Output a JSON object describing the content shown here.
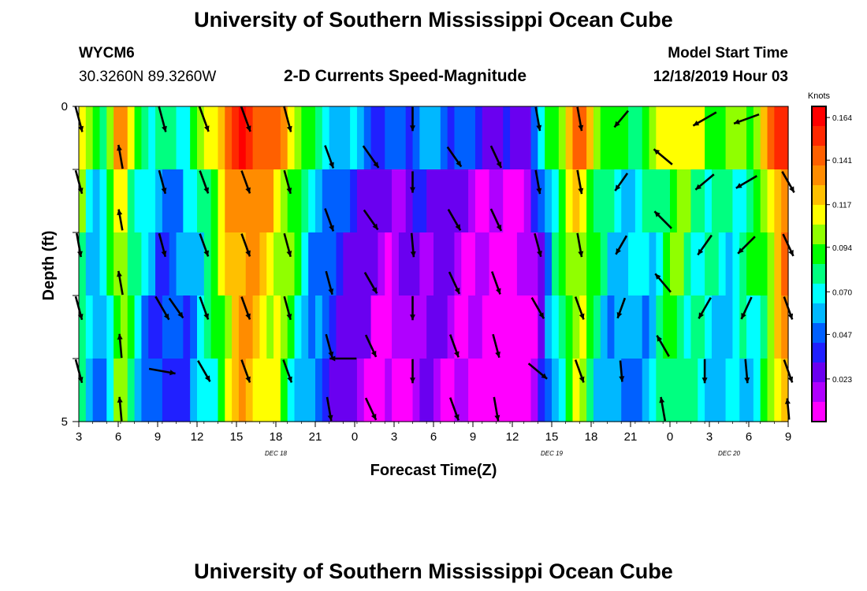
{
  "header": {
    "title": "University of Southern Mississippi Ocean Cube",
    "station_id": "WYCM6",
    "coordinates": "30.3260N 89.3260W",
    "subtitle": "2-D Currents Speed-Magnitude",
    "model_label": "Model Start Time",
    "model_time": "12/18/2019 Hour 03"
  },
  "footer": {
    "title": "University of Southern Mississippi Ocean Cube"
  },
  "chart_data": {
    "type": "heatmap",
    "title": "2-D Currents Speed-Magnitude",
    "xlabel": "Forecast Time(Z)",
    "ylabel": "Depth (ft)",
    "x_tick_labels": [
      "3",
      "6",
      "9",
      "12",
      "15",
      "18",
      "21",
      "0",
      "3",
      "6",
      "9",
      "12",
      "15",
      "18",
      "21",
      "0",
      "3",
      "6",
      "9"
    ],
    "x_day_labels": [
      {
        "label": "DEC 18",
        "tick_index": 5
      },
      {
        "label": "DEC 19",
        "tick_index": 12
      },
      {
        "label": "DEC 20",
        "tick_index": 16.5
      }
    ],
    "y_tick_labels": [
      "0",
      "5"
    ],
    "ylim": [
      0,
      5
    ],
    "y_reversed": true,
    "hours": [
      3,
      54
    ],
    "colorbar": {
      "label": "Knots",
      "tick_labels": [
        "0.164",
        "0.141",
        "0.117",
        "0.094",
        "0.070",
        "0.047",
        "0.023"
      ],
      "range": [
        0.0,
        0.17
      ]
    },
    "palette": [
      "#ff00ff",
      "#b000ff",
      "#6a00f0",
      "#2020ff",
      "#0060ff",
      "#00b8ff",
      "#00ffff",
      "#00ff80",
      "#00ff00",
      "#90ff00",
      "#ffff00",
      "#ffc000",
      "#ff8c00",
      "#ff6000",
      "#ff2800",
      "#ff0000"
    ],
    "depth_layers": 5,
    "speed_profile": [
      [
        3,
        0.1
      ],
      [
        4,
        0.06
      ],
      [
        5,
        0.075
      ],
      [
        6,
        0.12
      ],
      [
        7,
        0.08
      ],
      [
        8,
        0.06
      ],
      [
        9,
        0.05
      ],
      [
        10,
        0.055
      ],
      [
        11,
        0.06
      ],
      [
        12,
        0.08
      ],
      [
        13,
        0.1
      ],
      [
        14,
        0.13
      ],
      [
        15,
        0.14
      ],
      [
        16,
        0.13
      ],
      [
        17,
        0.12
      ],
      [
        18,
        0.1
      ],
      [
        19,
        0.08
      ],
      [
        20,
        0.06
      ],
      [
        21,
        0.05
      ],
      [
        22,
        0.04
      ],
      [
        23,
        0.035
      ],
      [
        24,
        0.025
      ],
      [
        25,
        0.02
      ],
      [
        26,
        0.022
      ],
      [
        27,
        0.03
      ],
      [
        28,
        0.03
      ],
      [
        29,
        0.03
      ],
      [
        30,
        0.025
      ],
      [
        31,
        0.02
      ],
      [
        32,
        0.012
      ],
      [
        33,
        0.008
      ],
      [
        34,
        0.008
      ],
      [
        35,
        0.012
      ],
      [
        36,
        0.03
      ],
      [
        37,
        0.07
      ],
      [
        38,
        0.1
      ],
      [
        39,
        0.12
      ],
      [
        40,
        0.09
      ],
      [
        41,
        0.07
      ],
      [
        42,
        0.065
      ],
      [
        43,
        0.065
      ],
      [
        44,
        0.07
      ],
      [
        45,
        0.09
      ],
      [
        46,
        0.1
      ],
      [
        47,
        0.085
      ],
      [
        48,
        0.08
      ],
      [
        49,
        0.075
      ],
      [
        50,
        0.075
      ],
      [
        51,
        0.08
      ],
      [
        52,
        0.09
      ],
      [
        53,
        0.12
      ],
      [
        54,
        0.15
      ]
    ],
    "depth_modifiers": [
      0.02,
      0.0,
      -0.005,
      -0.01,
      -0.015
    ],
    "vectors": [
      {
        "hour": 3,
        "depth": 0.2,
        "speed": 0.1,
        "dir": 165
      },
      {
        "hour": 6,
        "depth": 0.8,
        "speed": 0.09,
        "dir": 350
      },
      {
        "hour": 9,
        "depth": 0.2,
        "speed": 0.1,
        "dir": 165
      },
      {
        "hour": 12,
        "depth": 0.2,
        "speed": 0.1,
        "dir": 160
      },
      {
        "hour": 15,
        "depth": 0.2,
        "speed": 0.1,
        "dir": 160
      },
      {
        "hour": 18,
        "depth": 0.2,
        "speed": 0.1,
        "dir": 165
      },
      {
        "hour": 21,
        "depth": 0.8,
        "speed": 0.09,
        "dir": 160
      },
      {
        "hour": 24,
        "depth": 0.8,
        "speed": 0.1,
        "dir": 145
      },
      {
        "hour": 27,
        "depth": 0.2,
        "speed": 0.09,
        "dir": 180
      },
      {
        "hour": 30,
        "depth": 0.8,
        "speed": 0.09,
        "dir": 145
      },
      {
        "hour": 33,
        "depth": 0.8,
        "speed": 0.09,
        "dir": 155
      },
      {
        "hour": 36,
        "depth": 0.2,
        "speed": 0.09,
        "dir": 170
      },
      {
        "hour": 39,
        "depth": 0.2,
        "speed": 0.09,
        "dir": 170
      },
      {
        "hour": 42,
        "depth": 0.2,
        "speed": 0.08,
        "dir": 220
      },
      {
        "hour": 45,
        "depth": 0.8,
        "speed": 0.09,
        "dir": 310
      },
      {
        "hour": 48,
        "depth": 0.2,
        "speed": 0.1,
        "dir": 240
      },
      {
        "hour": 51,
        "depth": 0.2,
        "speed": 0.1,
        "dir": 250
      },
      {
        "hour": 3,
        "depth": 1.2,
        "speed": 0.09,
        "dir": 165
      },
      {
        "hour": 6,
        "depth": 1.8,
        "speed": 0.08,
        "dir": 350
      },
      {
        "hour": 9,
        "depth": 1.2,
        "speed": 0.09,
        "dir": 165
      },
      {
        "hour": 12,
        "depth": 1.2,
        "speed": 0.09,
        "dir": 160
      },
      {
        "hour": 15,
        "depth": 1.2,
        "speed": 0.09,
        "dir": 160
      },
      {
        "hour": 18,
        "depth": 1.2,
        "speed": 0.09,
        "dir": 165
      },
      {
        "hour": 21,
        "depth": 1.8,
        "speed": 0.09,
        "dir": 160
      },
      {
        "hour": 24,
        "depth": 1.8,
        "speed": 0.09,
        "dir": 145
      },
      {
        "hour": 27,
        "depth": 1.2,
        "speed": 0.08,
        "dir": 180
      },
      {
        "hour": 30,
        "depth": 1.8,
        "speed": 0.09,
        "dir": 150
      },
      {
        "hour": 33,
        "depth": 1.8,
        "speed": 0.09,
        "dir": 155
      },
      {
        "hour": 36,
        "depth": 1.2,
        "speed": 0.09,
        "dir": 170
      },
      {
        "hour": 39,
        "depth": 1.2,
        "speed": 0.09,
        "dir": 170
      },
      {
        "hour": 42,
        "depth": 1.2,
        "speed": 0.08,
        "dir": 215
      },
      {
        "hour": 45,
        "depth": 1.8,
        "speed": 0.09,
        "dir": 315
      },
      {
        "hour": 48,
        "depth": 1.2,
        "speed": 0.09,
        "dir": 230
      },
      {
        "hour": 51,
        "depth": 1.2,
        "speed": 0.09,
        "dir": 240
      },
      {
        "hour": 54,
        "depth": 1.2,
        "speed": 0.09,
        "dir": 150
      },
      {
        "hour": 3,
        "depth": 2.2,
        "speed": 0.09,
        "dir": 170
      },
      {
        "hour": 6,
        "depth": 2.8,
        "speed": 0.09,
        "dir": 350
      },
      {
        "hour": 9,
        "depth": 2.2,
        "speed": 0.09,
        "dir": 165
      },
      {
        "hour": 12,
        "depth": 2.2,
        "speed": 0.09,
        "dir": 160
      },
      {
        "hour": 15,
        "depth": 2.2,
        "speed": 0.09,
        "dir": 160
      },
      {
        "hour": 18,
        "depth": 2.2,
        "speed": 0.09,
        "dir": 165
      },
      {
        "hour": 21,
        "depth": 2.8,
        "speed": 0.09,
        "dir": 165
      },
      {
        "hour": 24,
        "depth": 2.8,
        "speed": 0.09,
        "dir": 150
      },
      {
        "hour": 27,
        "depth": 2.2,
        "speed": 0.09,
        "dir": 175
      },
      {
        "hour": 30,
        "depth": 2.8,
        "speed": 0.09,
        "dir": 155
      },
      {
        "hour": 33,
        "depth": 2.8,
        "speed": 0.09,
        "dir": 160
      },
      {
        "hour": 36,
        "depth": 2.2,
        "speed": 0.09,
        "dir": 165
      },
      {
        "hour": 39,
        "depth": 2.2,
        "speed": 0.09,
        "dir": 170
      },
      {
        "hour": 42,
        "depth": 2.2,
        "speed": 0.08,
        "dir": 210
      },
      {
        "hour": 45,
        "depth": 2.8,
        "speed": 0.09,
        "dir": 320
      },
      {
        "hour": 48,
        "depth": 2.2,
        "speed": 0.09,
        "dir": 215
      },
      {
        "hour": 51,
        "depth": 2.2,
        "speed": 0.09,
        "dir": 225
      },
      {
        "hour": 54,
        "depth": 2.2,
        "speed": 0.09,
        "dir": 155
      },
      {
        "hour": 3,
        "depth": 3.2,
        "speed": 0.09,
        "dir": 165
      },
      {
        "hour": 6,
        "depth": 3.8,
        "speed": 0.09,
        "dir": 355
      },
      {
        "hour": 9,
        "depth": 3.2,
        "speed": 0.1,
        "dir": 150
      },
      {
        "hour": 12,
        "depth": 3.2,
        "speed": 0.09,
        "dir": 160
      },
      {
        "hour": 15,
        "depth": 3.2,
        "speed": 0.09,
        "dir": 160
      },
      {
        "hour": 18,
        "depth": 3.2,
        "speed": 0.09,
        "dir": 165
      },
      {
        "hour": 21,
        "depth": 3.8,
        "speed": 0.09,
        "dir": 165
      },
      {
        "hour": 24,
        "depth": 3.8,
        "speed": 0.09,
        "dir": 155
      },
      {
        "hour": 27,
        "depth": 3.2,
        "speed": 0.09,
        "dir": 180
      },
      {
        "hour": 30,
        "depth": 3.8,
        "speed": 0.09,
        "dir": 160
      },
      {
        "hour": 33,
        "depth": 3.8,
        "speed": 0.09,
        "dir": 165
      },
      {
        "hour": 36,
        "depth": 3.2,
        "speed": 0.09,
        "dir": 150
      },
      {
        "hour": 39,
        "depth": 3.2,
        "speed": 0.09,
        "dir": 160
      },
      {
        "hour": 42,
        "depth": 3.2,
        "speed": 0.08,
        "dir": 200
      },
      {
        "hour": 45,
        "depth": 3.8,
        "speed": 0.09,
        "dir": 330
      },
      {
        "hour": 48,
        "depth": 3.2,
        "speed": 0.09,
        "dir": 210
      },
      {
        "hour": 51,
        "depth": 3.2,
        "speed": 0.09,
        "dir": 205
      },
      {
        "hour": 54,
        "depth": 3.2,
        "speed": 0.09,
        "dir": 160
      },
      {
        "hour": 3,
        "depth": 4.2,
        "speed": 0.09,
        "dir": 165
      },
      {
        "hour": 6,
        "depth": 4.8,
        "speed": 0.09,
        "dir": 355
      },
      {
        "hour": 9,
        "depth": 4.2,
        "speed": 0.1,
        "dir": 100
      },
      {
        "hour": 12,
        "depth": 4.2,
        "speed": 0.09,
        "dir": 150
      },
      {
        "hour": 15,
        "depth": 4.2,
        "speed": 0.09,
        "dir": 160
      },
      {
        "hour": 18,
        "depth": 4.2,
        "speed": 0.09,
        "dir": 160
      },
      {
        "hour": 21,
        "depth": 4.8,
        "speed": 0.09,
        "dir": 170
      },
      {
        "hour": 24,
        "depth": 4.8,
        "speed": 0.09,
        "dir": 155
      },
      {
        "hour": 27,
        "depth": 4.2,
        "speed": 0.09,
        "dir": 180
      },
      {
        "hour": 30,
        "depth": 4.8,
        "speed": 0.09,
        "dir": 160
      },
      {
        "hour": 33,
        "depth": 4.8,
        "speed": 0.09,
        "dir": 170
      },
      {
        "hour": 36,
        "depth": 4.2,
        "speed": 0.09,
        "dir": 130
      },
      {
        "hour": 39,
        "depth": 4.2,
        "speed": 0.09,
        "dir": 160
      },
      {
        "hour": 42,
        "depth": 4.2,
        "speed": 0.08,
        "dir": 175
      },
      {
        "hour": 45,
        "depth": 4.8,
        "speed": 0.09,
        "dir": 350
      },
      {
        "hour": 48,
        "depth": 4.2,
        "speed": 0.09,
        "dir": 180
      },
      {
        "hour": 51,
        "depth": 4.2,
        "speed": 0.09,
        "dir": 175
      },
      {
        "hour": 54,
        "depth": 4.2,
        "speed": 0.09,
        "dir": 160
      },
      {
        "hour": 10,
        "depth": 3.2,
        "speed": 0.09,
        "dir": 145
      },
      {
        "hour": 22,
        "depth": 4.0,
        "speed": 0.1,
        "dir": 270
      },
      {
        "hour": 54,
        "depth": 4.8,
        "speed": 0.08,
        "dir": 355
      }
    ]
  }
}
